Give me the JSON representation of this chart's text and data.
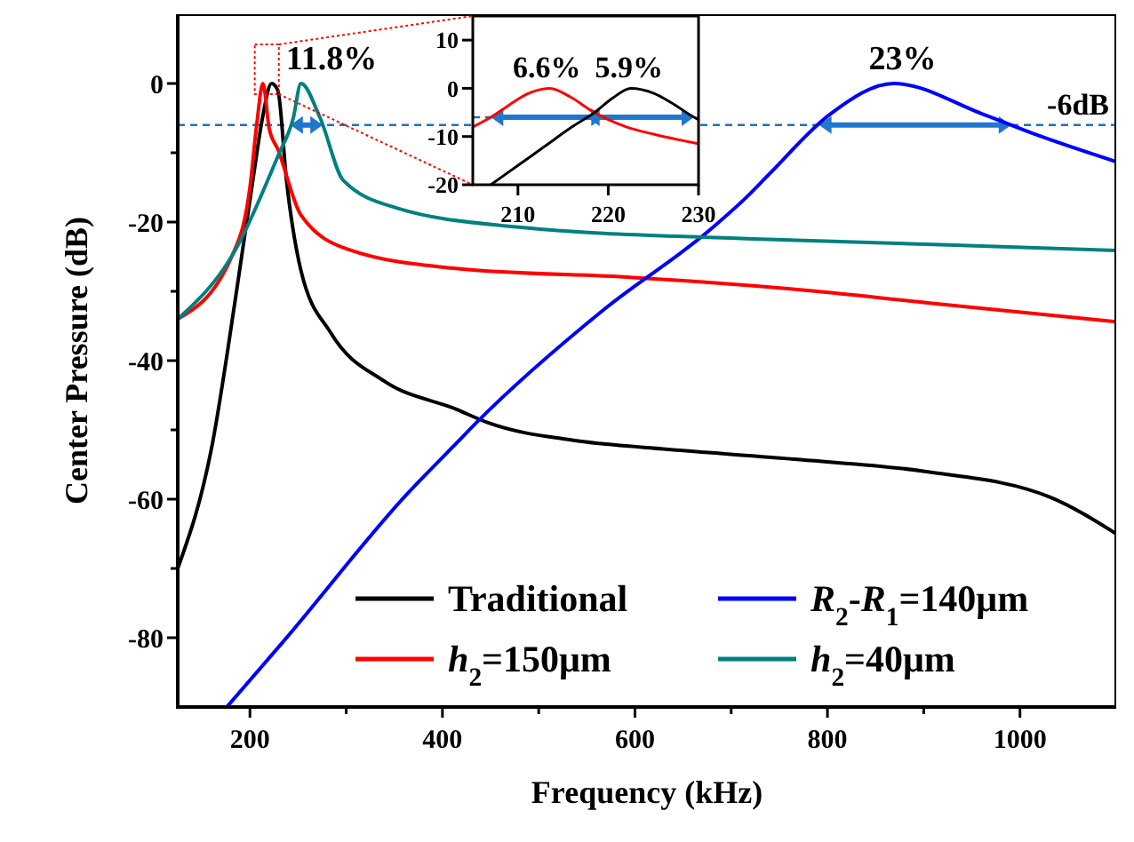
{
  "chart_data": [
    {
      "type": "line",
      "xlabel": "Frequency (kHz)",
      "ylabel": "Center Pressure (dB)",
      "xlim": [
        125,
        1100
      ],
      "ylim": [
        -90,
        10
      ],
      "xticks": [
        200,
        {
          "value": 300,
          "label": null
        },
        400,
        {
          "value": 500,
          "label": null
        },
        600,
        {
          "value": 700,
          "label": null
        },
        800,
        {
          "value": 900,
          "label": null
        },
        1000
      ],
      "yticks": [
        -80,
        {
          "value": -70,
          "label": null
        },
        -60,
        {
          "value": -50,
          "label": null
        },
        -40,
        {
          "value": -30,
          "label": null
        },
        -20,
        {
          "value": -10,
          "label": null
        },
        0
      ],
      "legend": "bottom right",
      "grid": false,
      "marker": "none",
      "line_style": "solid",
      "ref_lines": [
        {
          "axis": "y",
          "value": -6,
          "label": "-6dB",
          "color": "#1f6fc5",
          "line_style": "dashed"
        }
      ],
      "annotations": [
        {
          "text": "11.8%",
          "x": 253,
          "y": 0
        },
        {
          "text": "23%",
          "x": 878,
          "y": 0
        }
      ],
      "series": [
        {
          "name": "Traditional",
          "color": "#000000",
          "x": [
            125,
            161,
            185,
            203,
            213,
            222.5,
            229,
            238,
            253,
            284,
            340,
            414,
            448,
            536,
            616,
            772,
            901,
            1031,
            1100
          ],
          "values": [
            -70,
            -52,
            -31,
            -14,
            -5,
            0,
            -1,
            -14,
            -27,
            -36,
            -43,
            -47,
            -49,
            -51.5,
            -52.6,
            -54.3,
            -56,
            -59.7,
            -65
          ]
        },
        {
          "name": "h$_{2}$=150μm",
          "color": "#ff0000",
          "x": [
            125,
            181,
            200,
            207,
            213.5,
            220,
            229,
            253,
            303,
            414,
            598,
            643,
            789,
            913,
            1100
          ],
          "values": [
            -34,
            -25,
            -15,
            -6,
            0,
            -6.5,
            -9.5,
            -19,
            -24,
            -26.7,
            -28,
            -28.4,
            -30,
            -31.8,
            -34.4
          ]
        },
        {
          "name": "R$_{2}$-R$_{1}$=140μm",
          "color": "#0000ff",
          "x": [
            176,
            235,
            365,
            414,
            435,
            568,
            679,
            716,
            740,
            803,
            869,
            961,
            1017,
            1100
          ],
          "values": [
            -90,
            -80.5,
            -59,
            -52,
            -49,
            -32.6,
            -21,
            -16.4,
            -13,
            -4.4,
            0,
            -4.4,
            -7.4,
            -11.3
          ]
        },
        {
          "name": "h$_{2}$=40μm",
          "color": "#008080",
          "x": [
            125,
            185,
            229,
            245,
            253,
            273,
            297,
            353,
            477,
            716,
            925,
            1100
          ],
          "values": [
            -34,
            -24,
            -10.5,
            -5,
            0,
            -5,
            -14,
            -18,
            -20.7,
            -22.4,
            -23.3,
            -24.1
          ]
        }
      ]
    },
    {
      "type": "line",
      "xlim": [
        205,
        230
      ],
      "ylim": [
        -20,
        15
      ],
      "xticks": [
        210,
        220,
        230
      ],
      "yticks": [
        -20,
        -10,
        0,
        10
      ],
      "grid": false,
      "marker": "none",
      "line_style": "solid",
      "ref_lines": [
        {
          "axis": "y",
          "value": -6,
          "color": "#1f6fc5",
          "line_style": "dashed"
        }
      ],
      "annotations": [
        {
          "text": "6.6%",
          "x": 213.2,
          "y": 0
        },
        {
          "text": "5.9%",
          "x": 222.3,
          "y": 0
        }
      ],
      "series": [
        {
          "color": "#ff0000",
          "x": [
            205,
            207,
            209,
            211,
            213.5,
            216,
            218,
            220,
            222,
            225,
            230
          ],
          "values": [
            -8,
            -6,
            -3.5,
            -1.2,
            0,
            -2,
            -4.5,
            -6.5,
            -8,
            -9.5,
            -11.5
          ]
        },
        {
          "color": "#000000",
          "x": [
            207,
            210,
            213,
            216,
            218.5,
            220.5,
            222.5,
            225,
            227,
            229.5,
            230
          ],
          "values": [
            -20,
            -16,
            -12,
            -8,
            -5,
            -2,
            0,
            -1,
            -3,
            -6,
            -6.5
          ]
        }
      ]
    }
  ]
}
